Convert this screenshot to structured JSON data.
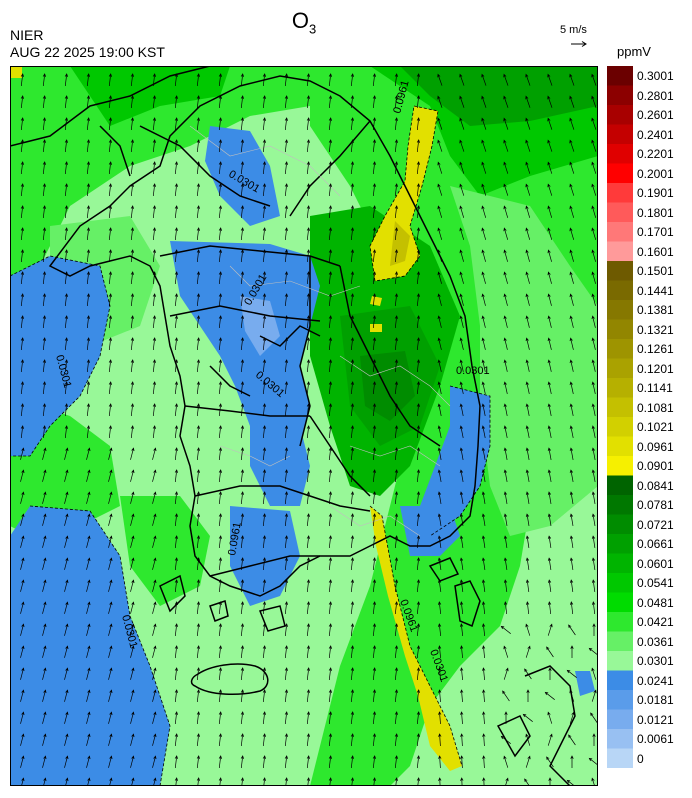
{
  "header": {
    "species": "O",
    "species_subscript": "3",
    "organization": "NIER",
    "timestamp": "AUG 22 2025 19:00 KST",
    "wind_reference": "5 m/s",
    "unit": "ppmV"
  },
  "map": {
    "contour_labels": [
      "0.0301",
      "0.0961",
      "0.0301",
      "0.0301",
      "0.0301",
      "0.0961",
      "0.0961",
      "0.0301",
      "0.0301",
      "0.0301"
    ]
  },
  "legend": {
    "bins": [
      {
        "label": "0.3001",
        "color": "#6b0000"
      },
      {
        "label": "0.2801",
        "color": "#8c0000"
      },
      {
        "label": "0.2601",
        "color": "#a80000"
      },
      {
        "label": "0.2401",
        "color": "#c40000"
      },
      {
        "label": "0.2201",
        "color": "#e00000"
      },
      {
        "label": "0.2001",
        "color": "#ff0000"
      },
      {
        "label": "0.1901",
        "color": "#ff3a3a"
      },
      {
        "label": "0.1801",
        "color": "#ff5a5a"
      },
      {
        "label": "0.1701",
        "color": "#ff7878"
      },
      {
        "label": "0.1601",
        "color": "#ff9a9a"
      },
      {
        "label": "0.1501",
        "color": "#6e5a00"
      },
      {
        "label": "0.1441",
        "color": "#7a6a00"
      },
      {
        "label": "0.1381",
        "color": "#867800"
      },
      {
        "label": "0.1321",
        "color": "#928600"
      },
      {
        "label": "0.1261",
        "color": "#9e9400"
      },
      {
        "label": "0.1201",
        "color": "#aaa200"
      },
      {
        "label": "0.1141",
        "color": "#b6b000"
      },
      {
        "label": "0.1081",
        "color": "#c4c000"
      },
      {
        "label": "0.1021",
        "color": "#d2d000"
      },
      {
        "label": "0.0961",
        "color": "#e2e000"
      },
      {
        "label": "0.0901",
        "color": "#f6f000"
      },
      {
        "label": "0.0841",
        "color": "#006400"
      },
      {
        "label": "0.0781",
        "color": "#007800"
      },
      {
        "label": "0.0721",
        "color": "#008c00"
      },
      {
        "label": "0.0661",
        "color": "#00a000"
      },
      {
        "label": "0.0601",
        "color": "#00b400"
      },
      {
        "label": "0.0541",
        "color": "#00c800"
      },
      {
        "label": "0.0481",
        "color": "#00dc00"
      },
      {
        "label": "0.0421",
        "color": "#2ee82e"
      },
      {
        "label": "0.0361",
        "color": "#66f066"
      },
      {
        "label": "0.0301",
        "color": "#98f898"
      },
      {
        "label": "0.0241",
        "color": "#3c8ce6"
      },
      {
        "label": "0.0181",
        "color": "#5a9cea"
      },
      {
        "label": "0.0121",
        "color": "#78acee"
      },
      {
        "label": "0.0061",
        "color": "#98c0f2"
      },
      {
        "label": "0",
        "color": "#b8d6f6"
      }
    ]
  }
}
